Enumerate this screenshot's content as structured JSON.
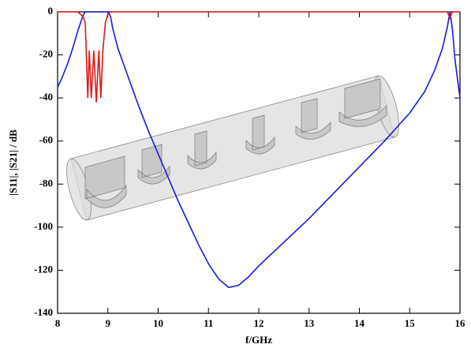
{
  "chart_data": {
    "type": "line",
    "xlabel": "f/GHz",
    "ylabel": "|S11|, |S21|  /  dB",
    "xlim": [
      8,
      16
    ],
    "xticks": [
      8,
      9,
      10,
      11,
      12,
      13,
      14,
      15,
      16
    ],
    "ylim": [
      -140,
      0
    ],
    "yticks": [
      -140,
      -120,
      -100,
      -80,
      -60,
      -40,
      -20,
      0
    ],
    "grid": false,
    "series": [
      {
        "color": "#1a1adc",
        "x": [
          8.0,
          8.1,
          8.2,
          8.3,
          8.4,
          8.5,
          8.55,
          9.0,
          9.05,
          9.1,
          9.2,
          9.4,
          9.6,
          9.8,
          10.0,
          10.2,
          10.4,
          10.6,
          10.8,
          11.0,
          11.2,
          11.4,
          11.6,
          11.8,
          12.0,
          12.5,
          13.0,
          13.5,
          14.0,
          14.5,
          15.0,
          15.3,
          15.5,
          15.65,
          15.75,
          15.8,
          15.85,
          15.9,
          16.0
        ],
        "values": [
          -35,
          -30,
          -24,
          -17,
          -9,
          -2,
          0,
          0,
          -2,
          -8,
          -17,
          -30,
          -43,
          -55,
          -66,
          -77,
          -88,
          -98,
          -108,
          -117,
          -124,
          -128,
          -127,
          -123,
          -118,
          -107,
          -96,
          -84,
          -72,
          -60,
          -47,
          -37,
          -27,
          -17,
          -7,
          0,
          -8,
          -22,
          -40
        ]
      },
      {
        "color": "#e01818",
        "x": [
          8.0,
          8.4,
          8.45,
          8.5,
          8.55,
          8.6,
          8.63,
          8.67,
          8.72,
          8.77,
          8.82,
          8.86,
          8.9,
          8.95,
          9.0,
          9.05,
          15.75,
          15.8,
          15.85,
          16.0
        ],
        "values": [
          0,
          0,
          -1,
          -2,
          -5,
          -40,
          -18,
          -40,
          -18,
          -42,
          -18,
          -40,
          -18,
          -5,
          -1,
          0,
          0,
          -3,
          0,
          0
        ]
      }
    ]
  }
}
